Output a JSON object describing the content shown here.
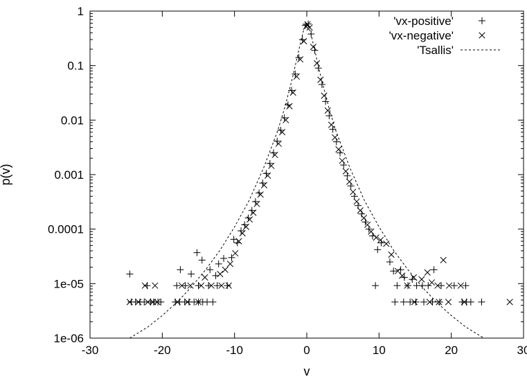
{
  "chart_data": {
    "type": "scatter",
    "xlabel": "v",
    "ylabel": "p(v)",
    "xlim": [
      -30,
      30
    ],
    "ylim": [
      1e-06,
      1
    ],
    "yscale": "log",
    "grid": false,
    "legend_position": "top-right",
    "x_ticks": [
      "-30",
      "-20",
      "-10",
      "0",
      "10",
      "20",
      "30"
    ],
    "y_ticks": [
      "1e-06",
      "1e-05",
      "0.0001",
      "0.001",
      "0.01",
      "0.1",
      "1"
    ],
    "series": [
      {
        "name": "'vx-positive'",
        "marker": "plus",
        "points": [
          [
            -24.5,
            1.5e-05
          ],
          [
            -24.3,
            4.6e-06
          ],
          [
            -23.7,
            4.6e-06
          ],
          [
            -23.1,
            4.6e-06
          ],
          [
            -22.5,
            4.6e-06
          ],
          [
            -21.6,
            4.6e-06
          ],
          [
            -21.2,
            4.6e-06
          ],
          [
            -20.6,
            4.6e-06
          ],
          [
            -20.2,
            4.6e-06
          ],
          [
            -18.2,
            4.6e-06
          ],
          [
            -17.6,
            4.6e-06
          ],
          [
            -16.9,
            4.6e-06
          ],
          [
            -16.3,
            4.6e-06
          ],
          [
            -15.6,
            4.6e-06
          ],
          [
            -15.0,
            4.6e-06
          ],
          [
            -14.4,
            4.6e-06
          ],
          [
            -13.8,
            4.6e-06
          ],
          [
            -13.0,
            4.6e-06
          ],
          [
            -22.1,
            9.2e-06
          ],
          [
            -18.0,
            9.2e-06
          ],
          [
            -16.8,
            9.2e-06
          ],
          [
            -15.0,
            9.2e-06
          ],
          [
            -13.6,
            9.2e-06
          ],
          [
            -12.4,
            9.2e-06
          ],
          [
            -11.0,
            9.2e-06
          ],
          [
            -17.5,
            1.8e-05
          ],
          [
            -16.0,
            1.5e-05
          ],
          [
            -14.5,
            2.7e-05
          ],
          [
            -13.4,
            1.8e-05
          ],
          [
            -12.6,
            1.4e-05
          ],
          [
            -15.2,
            3.7e-05
          ],
          [
            -12.2,
            2.3e-05
          ],
          [
            -11.5,
            2.9e-05
          ],
          [
            -10.4,
            3e-05
          ],
          [
            -10.1,
            6.5e-05
          ],
          [
            -9.6,
            5.6e-05
          ],
          [
            -9.1,
            9.3e-05
          ],
          [
            -8.6,
            0.00012
          ],
          [
            -8.1,
            0.00016
          ],
          [
            -7.6,
            0.00022
          ],
          [
            -7.1,
            0.00032
          ],
          [
            -6.6,
            0.00046
          ],
          [
            -6.1,
            0.0007
          ],
          [
            -5.6,
            0.00105
          ],
          [
            -5.1,
            0.0016
          ],
          [
            -4.6,
            0.0025
          ],
          [
            -4.1,
            0.0041
          ],
          [
            -3.6,
            0.0065
          ],
          [
            -3.1,
            0.011
          ],
          [
            -2.6,
            0.019
          ],
          [
            -2.1,
            0.035
          ],
          [
            -1.6,
            0.07
          ],
          [
            -1.1,
            0.14
          ],
          [
            -0.6,
            0.3
          ],
          [
            -0.2,
            0.55
          ],
          [
            0.2,
            0.58
          ],
          [
            0.6,
            0.38
          ],
          [
            1.1,
            0.19
          ],
          [
            1.6,
            0.09
          ],
          [
            2.1,
            0.045
          ],
          [
            2.6,
            0.022
          ],
          [
            3.1,
            0.012
          ],
          [
            3.6,
            0.0068
          ],
          [
            4.1,
            0.004
          ],
          [
            4.6,
            0.0025
          ],
          [
            5.1,
            0.0015
          ],
          [
            5.6,
            0.00095
          ],
          [
            6.1,
            0.00062
          ],
          [
            6.6,
            0.0004
          ],
          [
            7.1,
            0.00027
          ],
          [
            7.6,
            0.00019
          ],
          [
            8.1,
            0.000135
          ],
          [
            8.6,
            0.0001
          ],
          [
            9.1,
            7.5e-05
          ],
          [
            9.8,
            4.2e-05
          ],
          [
            10.3,
            5.6e-05
          ],
          [
            9.5,
            9.2e-06
          ],
          [
            11.5,
            2.5e-05
          ],
          [
            12.0,
            1.7e-05
          ],
          [
            12.5,
            9.2e-06
          ],
          [
            13.0,
            1.8e-05
          ],
          [
            13.5,
            1.3e-05
          ],
          [
            14.0,
            9.2e-06
          ],
          [
            14.6,
            1.2e-05
          ],
          [
            15.2,
            9.2e-06
          ],
          [
            16.0,
            9.2e-06
          ],
          [
            16.8,
            9.2e-06
          ],
          [
            17.6,
            1.8e-05
          ],
          [
            18.6,
            9.2e-06
          ],
          [
            20.4,
            9.2e-06
          ],
          [
            22.0,
            9.2e-06
          ],
          [
            12.2,
            4.6e-06
          ],
          [
            13.4,
            4.6e-06
          ],
          [
            14.3,
            4.6e-06
          ],
          [
            15.1,
            4.6e-06
          ],
          [
            16.2,
            4.6e-06
          ],
          [
            17.4,
            4.6e-06
          ],
          [
            18.4,
            4.6e-06
          ],
          [
            21.5,
            4.6e-06
          ],
          [
            22.1,
            4.6e-06
          ],
          [
            22.7,
            4.6e-06
          ],
          [
            24.2,
            4.6e-06
          ]
        ]
      },
      {
        "name": "'vx-negative'",
        "marker": "cross",
        "points": [
          [
            -24.5,
            4.6e-06
          ],
          [
            -23.3,
            4.6e-06
          ],
          [
            -22.0,
            4.6e-06
          ],
          [
            -21.3,
            4.6e-06
          ],
          [
            -20.7,
            4.6e-06
          ],
          [
            -17.9,
            4.6e-06
          ],
          [
            -16.5,
            4.6e-06
          ],
          [
            -15.0,
            4.6e-06
          ],
          [
            -22.4,
            9.2e-06
          ],
          [
            -21.0,
            9.2e-06
          ],
          [
            -17.3,
            9.2e-06
          ],
          [
            -16.1,
            9.2e-06
          ],
          [
            -14.6,
            9.2e-06
          ],
          [
            -13.2,
            9.2e-06
          ],
          [
            -11.8,
            9.2e-06
          ],
          [
            -10.8,
            9.2e-06
          ],
          [
            -14.1,
            1.3e-05
          ],
          [
            -12.0,
            1.5e-05
          ],
          [
            -11.3,
            1.8e-05
          ],
          [
            -10.6,
            2.3e-05
          ],
          [
            -9.9,
            3.6e-05
          ],
          [
            -9.4,
            6e-05
          ],
          [
            -8.9,
            8.4e-05
          ],
          [
            -8.4,
            0.00011
          ],
          [
            -7.9,
            0.00015
          ],
          [
            -7.4,
            0.0002
          ],
          [
            -6.9,
            0.00029
          ],
          [
            -6.4,
            0.00043
          ],
          [
            -5.9,
            0.00064
          ],
          [
            -5.4,
            0.00096
          ],
          [
            -4.9,
            0.00145
          ],
          [
            -4.4,
            0.0023
          ],
          [
            -3.9,
            0.0037
          ],
          [
            -3.4,
            0.006
          ],
          [
            -2.9,
            0.01
          ],
          [
            -2.4,
            0.018
          ],
          [
            -1.9,
            0.032
          ],
          [
            -1.4,
            0.063
          ],
          [
            -0.9,
            0.13
          ],
          [
            -0.4,
            0.28
          ],
          [
            -0.1,
            0.52
          ],
          [
            0.1,
            0.57
          ],
          [
            0.4,
            0.5
          ],
          [
            0.9,
            0.22
          ],
          [
            1.4,
            0.11
          ],
          [
            1.9,
            0.055
          ],
          [
            2.4,
            0.028
          ],
          [
            2.9,
            0.015
          ],
          [
            3.4,
            0.0082
          ],
          [
            3.9,
            0.0048
          ],
          [
            4.4,
            0.0029
          ],
          [
            4.9,
            0.0018
          ],
          [
            5.4,
            0.00115
          ],
          [
            5.9,
            0.00074
          ],
          [
            6.4,
            0.00048
          ],
          [
            6.9,
            0.00032
          ],
          [
            7.4,
            0.00022
          ],
          [
            7.9,
            0.00016
          ],
          [
            8.4,
            0.00012
          ],
          [
            8.9,
            9e-05
          ],
          [
            9.6,
            7e-05
          ],
          [
            10.2,
            6.3e-05
          ],
          [
            11.0,
            5.4e-05
          ],
          [
            11.7,
            3.4e-05
          ],
          [
            12.6,
            1.7e-05
          ],
          [
            13.2,
            1.4e-05
          ],
          [
            13.9,
            9.2e-06
          ],
          [
            14.8,
            1.3e-05
          ],
          [
            15.9,
            1.2e-05
          ],
          [
            16.7,
            1.6e-05
          ],
          [
            17.3,
            1.05e-05
          ],
          [
            18.1,
            9.2e-06
          ],
          [
            18.9,
            2.7e-05
          ],
          [
            19.7,
            9.2e-06
          ],
          [
            21.3,
            9.2e-06
          ],
          [
            14.9,
            4.6e-06
          ],
          [
            17.0,
            4.6e-06
          ],
          [
            18.3,
            4.6e-06
          ],
          [
            19.6,
            4.6e-06
          ],
          [
            21.8,
            4.6e-06
          ],
          [
            28.1,
            4.6e-06
          ]
        ]
      },
      {
        "name": "'Tsallis'",
        "style": "dashed-line",
        "points": [
          [
            -24.5,
            1e-06
          ],
          [
            -22,
            1.6e-06
          ],
          [
            -20,
            2.6e-06
          ],
          [
            -18,
            4.5e-06
          ],
          [
            -16,
            8.6e-06
          ],
          [
            -14,
            1.8e-05
          ],
          [
            -12,
            4.1e-05
          ],
          [
            -10,
            0.00011
          ],
          [
            -8,
            0.00033
          ],
          [
            -6,
            0.0013
          ],
          [
            -4,
            0.0065
          ],
          [
            -3,
            0.018
          ],
          [
            -2,
            0.058
          ],
          [
            -1,
            0.22
          ],
          [
            -0.5,
            0.42
          ],
          [
            0,
            0.6
          ],
          [
            0.5,
            0.42
          ],
          [
            1,
            0.22
          ],
          [
            2,
            0.058
          ],
          [
            3,
            0.018
          ],
          [
            4,
            0.0065
          ],
          [
            6,
            0.0013
          ],
          [
            8,
            0.00033
          ],
          [
            10,
            0.00011
          ],
          [
            12,
            4.1e-05
          ],
          [
            14,
            1.8e-05
          ],
          [
            16,
            8.6e-06
          ],
          [
            18,
            4.5e-06
          ],
          [
            20,
            2.6e-06
          ],
          [
            22,
            1.6e-06
          ],
          [
            24.5,
            1e-06
          ]
        ]
      }
    ]
  }
}
